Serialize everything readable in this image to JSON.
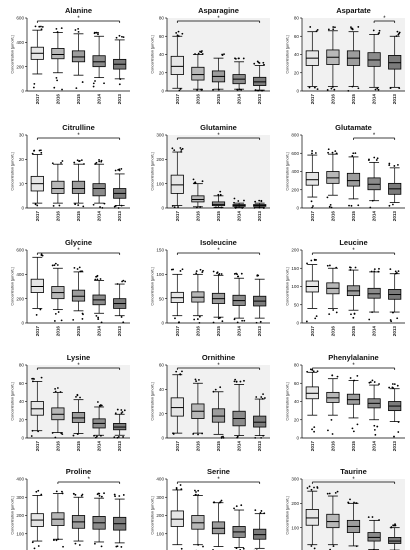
{
  "figure": {
    "common": {
      "type": "box",
      "categories": [
        "2017",
        "2016",
        "2015",
        "2014",
        "2013"
      ],
      "ylabel": "Concentration [µmol/L]",
      "significance_marker": "*",
      "box_shades": [
        "#e6e6e6",
        "#b8b8b8",
        "#9d9d9d",
        "#8b8b8b",
        "#7b7b7b"
      ]
    }
  },
  "chart_data": [
    {
      "type": "box",
      "title": "Alanine",
      "ylim": [
        0,
        600
      ],
      "yticks": [
        0,
        200,
        400,
        600
      ],
      "shaded": false,
      "bracket": {
        "from": "2017",
        "to": "2013",
        "label": "*"
      },
      "boxes": [
        {
          "category": "2017",
          "min": 140,
          "q1": 260,
          "median": 310,
          "q3": 360,
          "max": 500
        },
        {
          "category": "2016",
          "min": 150,
          "q1": 265,
          "median": 300,
          "q3": 350,
          "max": 480
        },
        {
          "category": "2015",
          "min": 130,
          "q1": 240,
          "median": 280,
          "q3": 330,
          "max": 470
        },
        {
          "category": "2014",
          "min": 110,
          "q1": 200,
          "median": 240,
          "q3": 290,
          "max": 450
        },
        {
          "category": "2013",
          "min": 100,
          "q1": 180,
          "median": 220,
          "q3": 260,
          "max": 420
        }
      ]
    },
    {
      "type": "box",
      "title": "Asparagine",
      "ylim": [
        0,
        80
      ],
      "yticks": [
        0,
        20,
        40,
        60,
        80
      ],
      "shaded": true,
      "bracket": {
        "from": "2017",
        "to": "2013",
        "label": "*"
      },
      "boxes": [
        {
          "category": "2017",
          "min": 3,
          "q1": 18,
          "median": 27,
          "q3": 38,
          "max": 60
        },
        {
          "category": "2016",
          "min": 2,
          "q1": 12,
          "median": 18,
          "q3": 26,
          "max": 40
        },
        {
          "category": "2015",
          "min": 2,
          "q1": 10,
          "median": 16,
          "q3": 22,
          "max": 36
        },
        {
          "category": "2014",
          "min": 2,
          "q1": 8,
          "median": 13,
          "q3": 18,
          "max": 32
        },
        {
          "category": "2013",
          "min": 1,
          "q1": 6,
          "median": 10,
          "q3": 15,
          "max": 28
        }
      ]
    },
    {
      "type": "box",
      "title": "Aspartate",
      "ylim": [
        0,
        80
      ],
      "yticks": [
        0,
        20,
        40,
        60,
        80
      ],
      "shaded": true,
      "bracket": {
        "from": "2014",
        "to": "2013",
        "label": "*"
      },
      "boxes": [
        {
          "category": "2017",
          "min": 5,
          "q1": 28,
          "median": 36,
          "q3": 44,
          "max": 65
        },
        {
          "category": "2016",
          "min": 5,
          "q1": 29,
          "median": 37,
          "q3": 45,
          "max": 66
        },
        {
          "category": "2015",
          "min": 5,
          "q1": 28,
          "median": 36,
          "q3": 44,
          "max": 65
        },
        {
          "category": "2014",
          "min": 4,
          "q1": 27,
          "median": 34,
          "q3": 42,
          "max": 62
        },
        {
          "category": "2013",
          "min": 4,
          "q1": 24,
          "median": 31,
          "q3": 39,
          "max": 60
        }
      ]
    },
    {
      "type": "box",
      "title": "Citrulline",
      "ylim": [
        0,
        30
      ],
      "yticks": [
        0,
        10,
        20,
        30
      ],
      "shaded": false,
      "bracket": {
        "from": "2017",
        "to": "2013",
        "label": "*"
      },
      "boxes": [
        {
          "category": "2017",
          "min": 2,
          "q1": 7,
          "median": 10,
          "q3": 13,
          "max": 22
        },
        {
          "category": "2016",
          "min": 2,
          "q1": 6,
          "median": 8,
          "q3": 11,
          "max": 18
        },
        {
          "category": "2015",
          "min": 2,
          "q1": 6,
          "median": 8,
          "q3": 11,
          "max": 18
        },
        {
          "category": "2014",
          "min": 2,
          "q1": 5,
          "median": 8,
          "q3": 10,
          "max": 18
        },
        {
          "category": "2013",
          "min": 1,
          "q1": 4,
          "median": 6,
          "q3": 8,
          "max": 14
        }
      ]
    },
    {
      "type": "box",
      "title": "Glutamine",
      "ylim": [
        0,
        300
      ],
      "yticks": [
        0,
        100,
        200,
        300
      ],
      "shaded": true,
      "bracket": {
        "from": "2017",
        "to": "2013",
        "label": "*"
      },
      "boxes": [
        {
          "category": "2017",
          "min": 10,
          "q1": 60,
          "median": 95,
          "q3": 135,
          "max": 230
        },
        {
          "category": "2016",
          "min": 5,
          "q1": 25,
          "median": 35,
          "q3": 50,
          "max": 100
        },
        {
          "category": "2015",
          "min": 3,
          "q1": 10,
          "median": 15,
          "q3": 25,
          "max": 50
        },
        {
          "category": "2014",
          "min": 2,
          "q1": 7,
          "median": 10,
          "q3": 14,
          "max": 20
        },
        {
          "category": "2013",
          "min": 2,
          "q1": 7,
          "median": 10,
          "q3": 14,
          "max": 20
        }
      ]
    },
    {
      "type": "box",
      "title": "Glutamate",
      "ylim": [
        0,
        800
      ],
      "yticks": [
        0,
        200,
        400,
        600,
        800
      ],
      "shaded": false,
      "bracket": {
        "from": "2015",
        "to": "2013",
        "label": "*"
      },
      "boxes": [
        {
          "category": "2017",
          "min": 120,
          "q1": 250,
          "median": 310,
          "q3": 390,
          "max": 580
        },
        {
          "category": "2016",
          "min": 140,
          "q1": 270,
          "median": 330,
          "q3": 400,
          "max": 590
        },
        {
          "category": "2015",
          "min": 100,
          "q1": 240,
          "median": 300,
          "q3": 380,
          "max": 560
        },
        {
          "category": "2014",
          "min": 80,
          "q1": 200,
          "median": 260,
          "q3": 330,
          "max": 500
        },
        {
          "category": "2013",
          "min": 60,
          "q1": 150,
          "median": 210,
          "q3": 270,
          "max": 440
        }
      ]
    },
    {
      "type": "box",
      "title": "Glycine",
      "ylim": [
        0,
        600
      ],
      "yticks": [
        0,
        200,
        400,
        600
      ],
      "shaded": false,
      "bracket": {
        "from": "2017",
        "to": "2013",
        "label": "*"
      },
      "boxes": [
        {
          "category": "2017",
          "min": 120,
          "q1": 250,
          "median": 300,
          "q3": 360,
          "max": 540
        },
        {
          "category": "2016",
          "min": 110,
          "q1": 200,
          "median": 250,
          "q3": 300,
          "max": 450
        },
        {
          "category": "2015",
          "min": 100,
          "q1": 180,
          "median": 220,
          "q3": 270,
          "max": 420
        },
        {
          "category": "2014",
          "min": 80,
          "q1": 150,
          "median": 190,
          "q3": 230,
          "max": 350
        },
        {
          "category": "2013",
          "min": 60,
          "q1": 120,
          "median": 160,
          "q3": 200,
          "max": 320
        }
      ]
    },
    {
      "type": "box",
      "title": "Isoleucine",
      "ylim": [
        0,
        150
      ],
      "yticks": [
        0,
        50,
        100,
        150
      ],
      "shaded": false,
      "bracket": {
        "from": "2017",
        "to": "2013",
        "label": "*"
      },
      "boxes": [
        {
          "category": "2017",
          "min": 15,
          "q1": 42,
          "median": 52,
          "q3": 63,
          "max": 100
        },
        {
          "category": "2016",
          "min": 15,
          "q1": 43,
          "median": 53,
          "q3": 64,
          "max": 100
        },
        {
          "category": "2015",
          "min": 12,
          "q1": 40,
          "median": 50,
          "q3": 61,
          "max": 98
        },
        {
          "category": "2014",
          "min": 10,
          "q1": 36,
          "median": 46,
          "q3": 57,
          "max": 92
        },
        {
          "category": "2013",
          "min": 10,
          "q1": 35,
          "median": 45,
          "q3": 55,
          "max": 90
        }
      ]
    },
    {
      "type": "box",
      "title": "Leucine",
      "ylim": [
        0,
        200
      ],
      "yticks": [
        0,
        50,
        100,
        150,
        200
      ],
      "shaded": false,
      "bracket": {
        "from": "2017",
        "to": "2013",
        "label": "*"
      },
      "boxes": [
        {
          "category": "2017",
          "min": 40,
          "q1": 85,
          "median": 100,
          "q3": 115,
          "max": 160
        },
        {
          "category": "2016",
          "min": 40,
          "q1": 80,
          "median": 95,
          "q3": 110,
          "max": 150
        },
        {
          "category": "2015",
          "min": 35,
          "q1": 75,
          "median": 88,
          "q3": 102,
          "max": 145
        },
        {
          "category": "2014",
          "min": 30,
          "q1": 68,
          "median": 80,
          "q3": 95,
          "max": 140
        },
        {
          "category": "2013",
          "min": 30,
          "q1": 65,
          "median": 78,
          "q3": 92,
          "max": 135
        }
      ]
    },
    {
      "type": "box",
      "title": "Lysine",
      "ylim": [
        0,
        80
      ],
      "yticks": [
        0,
        20,
        40,
        60,
        80
      ],
      "shaded": true,
      "bracket": {
        "from": "2017",
        "to": "2013",
        "label": "*"
      },
      "boxes": [
        {
          "category": "2017",
          "min": 8,
          "q1": 25,
          "median": 32,
          "q3": 40,
          "max": 62
        },
        {
          "category": "2016",
          "min": 6,
          "q1": 20,
          "median": 26,
          "q3": 33,
          "max": 50
        },
        {
          "category": "2015",
          "min": 5,
          "q1": 17,
          "median": 22,
          "q3": 28,
          "max": 42
        },
        {
          "category": "2014",
          "min": 3,
          "q1": 11,
          "median": 16,
          "q3": 21,
          "max": 34
        },
        {
          "category": "2013",
          "min": 3,
          "q1": 9,
          "median": 12,
          "q3": 16,
          "max": 26
        }
      ]
    },
    {
      "type": "box",
      "title": "Ornithine",
      "ylim": [
        0,
        60
      ],
      "yticks": [
        0,
        20,
        40,
        60
      ],
      "shaded": true,
      "bracket": {
        "from": "2017",
        "to": "2013",
        "label": "*"
      },
      "boxes": [
        {
          "category": "2017",
          "min": 4,
          "q1": 18,
          "median": 25,
          "q3": 33,
          "max": 52
        },
        {
          "category": "2016",
          "min": 4,
          "q1": 16,
          "median": 22,
          "q3": 28,
          "max": 45
        },
        {
          "category": "2015",
          "min": 3,
          "q1": 13,
          "median": 18,
          "q3": 24,
          "max": 38
        },
        {
          "category": "2014",
          "min": 2,
          "q1": 10,
          "median": 16,
          "q3": 22,
          "max": 44
        },
        {
          "category": "2013",
          "min": 2,
          "q1": 9,
          "median": 13,
          "q3": 18,
          "max": 32
        }
      ]
    },
    {
      "type": "box",
      "title": "Phenylalanine",
      "ylim": [
        0,
        80
      ],
      "yticks": [
        0,
        20,
        40,
        60,
        80
      ],
      "shaded": false,
      "bracket": {
        "from": "2017",
        "to": "2013",
        "label": "*"
      },
      "boxes": [
        {
          "category": "2017",
          "min": 25,
          "q1": 43,
          "median": 49,
          "q3": 56,
          "max": 72
        },
        {
          "category": "2016",
          "min": 25,
          "q1": 39,
          "median": 44,
          "q3": 50,
          "max": 65
        },
        {
          "category": "2015",
          "min": 22,
          "q1": 37,
          "median": 42,
          "q3": 48,
          "max": 63
        },
        {
          "category": "2014",
          "min": 20,
          "q1": 33,
          "median": 38,
          "q3": 43,
          "max": 58
        },
        {
          "category": "2013",
          "min": 18,
          "q1": 30,
          "median": 35,
          "q3": 40,
          "max": 54
        }
      ]
    },
    {
      "type": "box",
      "title": "Proline",
      "ylim": [
        0,
        400
      ],
      "yticks": [
        0,
        100,
        200,
        300,
        400
      ],
      "shaded": false,
      "bracket": {
        "from": "2016",
        "to": "2013",
        "label": "*"
      },
      "boxes": [
        {
          "category": "2017",
          "min": 60,
          "q1": 140,
          "median": 175,
          "q3": 210,
          "max": 310
        },
        {
          "category": "2016",
          "min": 70,
          "q1": 145,
          "median": 180,
          "q3": 215,
          "max": 320
        },
        {
          "category": "2015",
          "min": 60,
          "q1": 130,
          "median": 165,
          "q3": 200,
          "max": 300
        },
        {
          "category": "2014",
          "min": 55,
          "q1": 125,
          "median": 160,
          "q3": 195,
          "max": 295
        },
        {
          "category": "2013",
          "min": 50,
          "q1": 120,
          "median": 155,
          "q3": 190,
          "max": 290
        }
      ]
    },
    {
      "type": "box",
      "title": "Serine",
      "ylim": [
        0,
        400
      ],
      "yticks": [
        0,
        100,
        200,
        300,
        400
      ],
      "shaded": false,
      "bracket": {
        "from": "2017",
        "to": "2013",
        "label": "*"
      },
      "boxes": [
        {
          "category": "2017",
          "min": 40,
          "q1": 140,
          "median": 180,
          "q3": 225,
          "max": 340
        },
        {
          "category": "2016",
          "min": 40,
          "q1": 125,
          "median": 160,
          "q3": 200,
          "max": 310
        },
        {
          "category": "2015",
          "min": 30,
          "q1": 100,
          "median": 130,
          "q3": 165,
          "max": 270
        },
        {
          "category": "2014",
          "min": 25,
          "q1": 80,
          "median": 110,
          "q3": 140,
          "max": 230
        },
        {
          "category": "2013",
          "min": 20,
          "q1": 70,
          "median": 95,
          "q3": 125,
          "max": 210
        }
      ]
    },
    {
      "type": "box",
      "title": "Taurine",
      "ylim": [
        0,
        300
      ],
      "yticks": [
        0,
        100,
        200,
        300
      ],
      "shaded": true,
      "bracket": {
        "from": "2017",
        "to": "2013",
        "label": "*"
      },
      "boxes": [
        {
          "category": "2017",
          "min": 30,
          "q1": 110,
          "median": 140,
          "q3": 175,
          "max": 250
        },
        {
          "category": "2016",
          "min": 30,
          "q1": 100,
          "median": 125,
          "q3": 155,
          "max": 230
        },
        {
          "category": "2015",
          "min": 25,
          "q1": 80,
          "median": 105,
          "q3": 130,
          "max": 200
        },
        {
          "category": "2014",
          "min": 10,
          "q1": 45,
          "median": 60,
          "q3": 80,
          "max": 130
        },
        {
          "category": "2013",
          "min": 8,
          "q1": 35,
          "median": 45,
          "q3": 60,
          "max": 100
        }
      ]
    }
  ]
}
